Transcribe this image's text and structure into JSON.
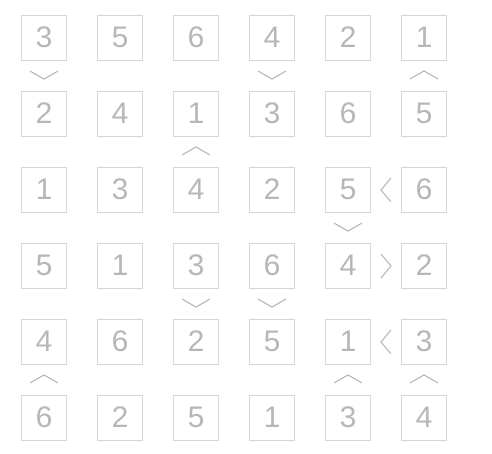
{
  "puzzle": {
    "grid": [
      [
        "3",
        "5",
        "6",
        "4",
        "2",
        "1"
      ],
      [
        "2",
        "4",
        "1",
        "3",
        "6",
        "5"
      ],
      [
        "1",
        "3",
        "4",
        "2",
        "5",
        "6"
      ],
      [
        "5",
        "1",
        "3",
        "6",
        "4",
        "2"
      ],
      [
        "4",
        "6",
        "2",
        "5",
        "1",
        "3"
      ],
      [
        "6",
        "2",
        "5",
        "1",
        "3",
        "4"
      ]
    ],
    "vertical_signs": [
      {
        "row": 0,
        "col": 0,
        "dir": "down"
      },
      {
        "row": 0,
        "col": 3,
        "dir": "down"
      },
      {
        "row": 0,
        "col": 5,
        "dir": "up"
      },
      {
        "row": 1,
        "col": 2,
        "dir": "up"
      },
      {
        "row": 2,
        "col": 4,
        "dir": "down"
      },
      {
        "row": 3,
        "col": 2,
        "dir": "down"
      },
      {
        "row": 3,
        "col": 3,
        "dir": "down"
      },
      {
        "row": 4,
        "col": 0,
        "dir": "up"
      },
      {
        "row": 4,
        "col": 4,
        "dir": "up"
      },
      {
        "row": 4,
        "col": 5,
        "dir": "up"
      }
    ],
    "horizontal_signs": [
      {
        "row": 2,
        "col": 4,
        "dir": "left"
      },
      {
        "row": 3,
        "col": 4,
        "dir": "right"
      },
      {
        "row": 4,
        "col": 4,
        "dir": "left"
      }
    ],
    "colors": {
      "digit": "#b7b7b7",
      "border": "#d6d6d6",
      "sign": "#b4b4b4",
      "background": "#ffffff"
    }
  }
}
